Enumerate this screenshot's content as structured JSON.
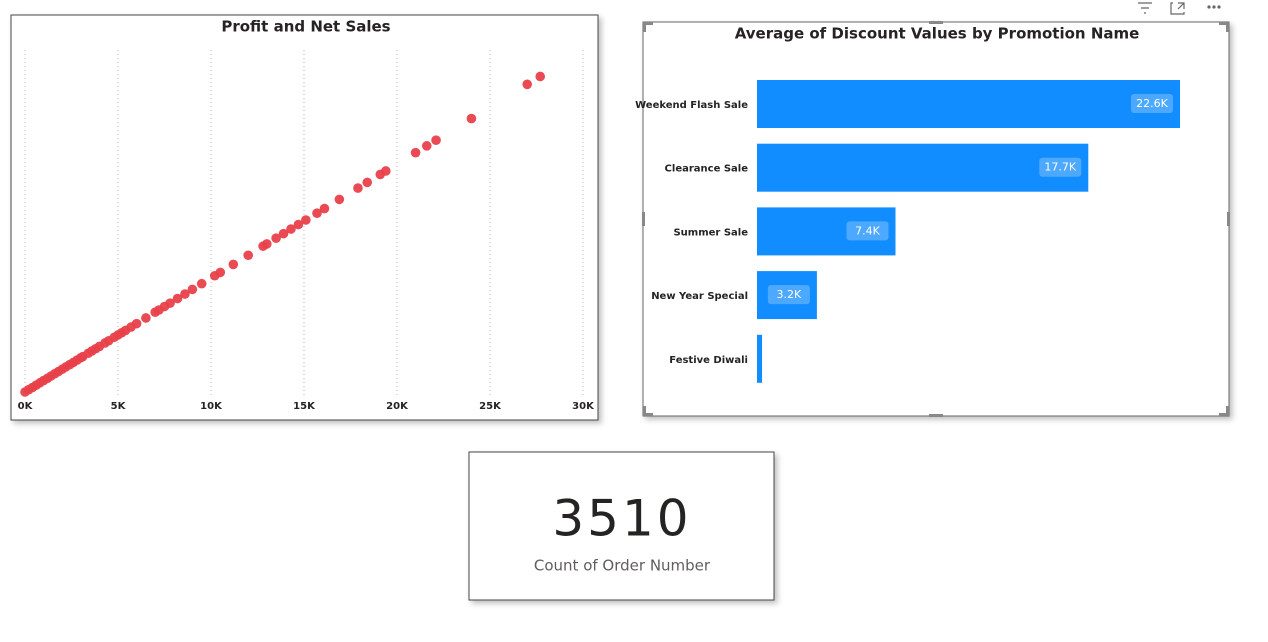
{
  "chart_data": [
    {
      "type": "scatter",
      "title": "Profit and Net Sales",
      "color": "#e8404a",
      "x": [
        0,
        200,
        400,
        600,
        800,
        1000,
        1200,
        1400,
        1600,
        1800,
        2000,
        2200,
        2400,
        2600,
        2800,
        3000,
        3100,
        3400,
        3600,
        3800,
        4000,
        4300,
        4500,
        4800,
        5000,
        5200,
        5400,
        5700,
        6000,
        6500,
        7000,
        7200,
        7500,
        7800,
        8200,
        8600,
        9000,
        9500,
        10200,
        10500,
        11200,
        12000,
        12800,
        13000,
        13500,
        13900,
        14300,
        14700,
        15100,
        15700,
        16100,
        16900,
        17900,
        18400,
        19100,
        19400,
        21000,
        21600,
        22100,
        24000,
        27000,
        27700
      ],
      "y": [
        0,
        200,
        390,
        590,
        790,
        990,
        1180,
        1380,
        1580,
        1770,
        1970,
        2170,
        2360,
        2560,
        2760,
        2960,
        3050,
        3350,
        3550,
        3740,
        3940,
        4240,
        4430,
        4730,
        4930,
        5120,
        5320,
        5610,
        5910,
        6400,
        6900,
        7090,
        7390,
        7680,
        8080,
        8470,
        8870,
        9360,
        10050,
        10340,
        11030,
        11820,
        12610,
        12800,
        13300,
        13690,
        14090,
        14480,
        14870,
        15460,
        15860,
        16650,
        17630,
        18120,
        18810,
        19110,
        20690,
        21280,
        21770,
        23640,
        26600,
        27280
      ],
      "xlim": [
        0,
        30000
      ],
      "ylim": [
        0,
        30000
      ],
      "xticks": [
        {
          "value": 0,
          "label": "0K"
        },
        {
          "value": 5000,
          "label": "5K"
        },
        {
          "value": 10000,
          "label": "10K"
        },
        {
          "value": 15000,
          "label": "15K"
        },
        {
          "value": 20000,
          "label": "20K"
        },
        {
          "value": 25000,
          "label": "25K"
        },
        {
          "value": 30000,
          "label": "30K"
        }
      ],
      "grid": true
    },
    {
      "type": "barh",
      "title": "Average of Discount Values by Promotion Name",
      "color": "#118dff",
      "categories": [
        "Weekend Flash Sale",
        "Clearance Sale",
        "Summer Sale",
        "New Year Special",
        "Festive Diwali"
      ],
      "values": [
        22600,
        17700,
        7400,
        3200,
        270
      ],
      "value_labels": [
        "22.6K",
        "17.7K",
        "7.4K",
        "3.2K",
        null
      ]
    }
  ],
  "card": {
    "value": "3510",
    "label": "Count of Order Number"
  }
}
